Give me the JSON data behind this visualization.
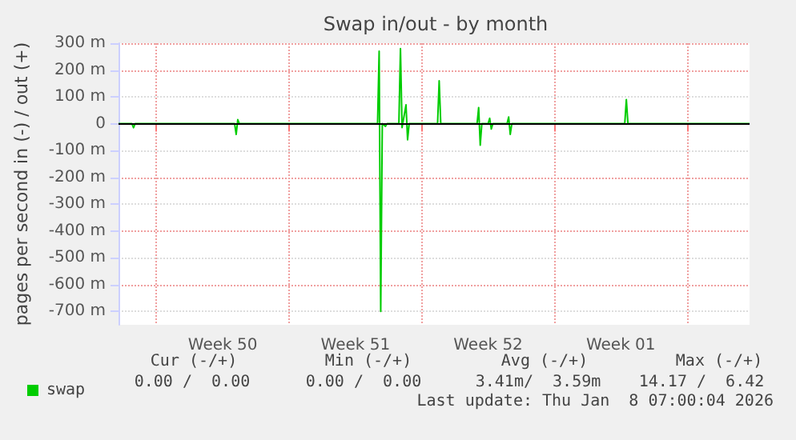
{
  "chart_data": {
    "type": "line",
    "title": "Swap in/out - by month",
    "ylabel": "pages per second in (-) / out (+)",
    "x": [
      "2025-12-06T00:00",
      "2025-12-06T17:00",
      "2025-12-06T19:00",
      "2025-12-06T21:00",
      "2025-12-12T03:00",
      "2025-12-12T05:00",
      "2025-12-12T07:00",
      "2025-12-12T09:00",
      "2025-12-19T16:00",
      "2025-12-19T18:00",
      "2025-12-19T20:00",
      "2025-12-19T22:00",
      "2025-12-20T02:00",
      "2025-12-20T04:00",
      "2025-12-20T19:00",
      "2025-12-20T21:00",
      "2025-12-20T23:00",
      "2025-12-21T04:00",
      "2025-12-21T06:00",
      "2025-12-21T08:00",
      "2025-12-22T20:00",
      "2025-12-22T22:00",
      "2025-12-23T00:00",
      "2025-12-24T22:00",
      "2025-12-25T00:00",
      "2025-12-25T02:00",
      "2025-12-25T04:00",
      "2025-12-25T12:00",
      "2025-12-25T14:00",
      "2025-12-25T16:00",
      "2025-12-25T18:00",
      "2025-12-26T12:00",
      "2025-12-26T14:00",
      "2025-12-26T16:00",
      "2025-12-26T18:00",
      "2026-01-01T17:00",
      "2026-01-01T19:00",
      "2026-01-01T21:00",
      "2026-01-08T07:00"
    ],
    "series": [
      {
        "name": "swap",
        "color": "#00cc00",
        "values": [
          0,
          0,
          -15,
          0,
          0,
          -40,
          15,
          0,
          0,
          270,
          -700,
          0,
          -10,
          0,
          0,
          280,
          -15,
          70,
          -60,
          0,
          0,
          160,
          0,
          0,
          60,
          -80,
          0,
          0,
          20,
          -20,
          0,
          0,
          25,
          -40,
          0,
          0,
          90,
          0,
          0
        ]
      }
    ],
    "xlim": [
      "2025-12-06T00:00",
      "2026-01-08T07:00"
    ],
    "xticks": [
      {
        "value": "2025-12-08T00:00",
        "label": null
      },
      {
        "value": "2025-12-11T12:00",
        "label": "Week 50"
      },
      {
        "value": "2025-12-15T00:00",
        "label": null
      },
      {
        "value": "2025-12-18T12:00",
        "label": "Week 51"
      },
      {
        "value": "2025-12-22T00:00",
        "label": null
      },
      {
        "value": "2025-12-25T12:00",
        "label": "Week 52"
      },
      {
        "value": "2025-12-29T00:00",
        "label": null
      },
      {
        "value": "2026-01-01T12:00",
        "label": "Week 01"
      },
      {
        "value": "2026-01-05T00:00",
        "label": null
      }
    ],
    "ylim": [
      -750,
      300
    ],
    "yticks": [
      {
        "value": -700,
        "label": "-700 m"
      },
      {
        "value": -600,
        "label": "-600 m"
      },
      {
        "value": -500,
        "label": "-500 m"
      },
      {
        "value": -400,
        "label": "-400 m"
      },
      {
        "value": -300,
        "label": "-300 m"
      },
      {
        "value": -200,
        "label": "-200 m"
      },
      {
        "value": -100,
        "label": "-100 m"
      },
      {
        "value": 0,
        "label": "0"
      },
      {
        "value": 100,
        "label": "100 m"
      },
      {
        "value": 200,
        "label": "200 m"
      },
      {
        "value": 300,
        "label": "300 m"
      }
    ],
    "ref_lines": [
      {
        "axis": "y",
        "value": 0,
        "color": "#000000"
      }
    ],
    "grid": true,
    "legend": "bottom left",
    "marker": "none",
    "line_style": "solid",
    "annotations": [
      "Cur (-/+)",
      "Min (-/+)",
      "Avg (-/+)",
      "Max (-/+)",
      "0.00 /  0.00",
      "0.00 /  0.00",
      "3.41m/  3.59m",
      "14.17 /  6.42",
      "Last update: Thu Jan  8 07:00:04 2026"
    ]
  }
}
